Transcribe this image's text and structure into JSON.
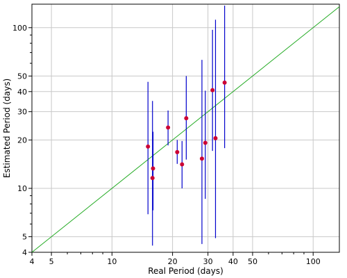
{
  "chart_data": {
    "type": "scatter",
    "xlabel": "Real Period (days)",
    "ylabel": "Estimated Period (days)",
    "x_scale": "log",
    "y_scale": "log",
    "xlim": [
      4,
      135
    ],
    "ylim": [
      4,
      140
    ],
    "grid": true,
    "x_ticks": [
      {
        "value": 4,
        "label": "4",
        "grid": false
      },
      {
        "value": 5,
        "label": "5",
        "grid": true
      },
      {
        "value": 10,
        "label": "10",
        "grid": true
      },
      {
        "value": 20,
        "label": "20",
        "grid": true
      },
      {
        "value": 30,
        "label": "30",
        "grid": true
      },
      {
        "value": 40,
        "label": "40",
        "grid": true
      },
      {
        "value": 50,
        "label": "50",
        "grid": true
      },
      {
        "value": 100,
        "label": "100",
        "grid": true
      }
    ],
    "y_ticks": [
      {
        "value": 4,
        "label": "4",
        "grid": false
      },
      {
        "value": 5,
        "label": "5",
        "grid": true
      },
      {
        "value": 10,
        "label": "10",
        "grid": true
      },
      {
        "value": 20,
        "label": "20",
        "grid": true
      },
      {
        "value": 30,
        "label": "30",
        "grid": true
      },
      {
        "value": 40,
        "label": "40",
        "grid": true
      },
      {
        "value": 50,
        "label": "50",
        "grid": true
      },
      {
        "value": 100,
        "label": "100",
        "grid": true
      }
    ],
    "x_minor_ticks": [
      6,
      7,
      8,
      9,
      60,
      70,
      80,
      90
    ],
    "y_minor_ticks": [
      6,
      7,
      8,
      9,
      60,
      70,
      80,
      90
    ],
    "reference_line": {
      "from": 4,
      "to": 135,
      "color": "#22aa22"
    },
    "series": [
      {
        "color": "#cc0033",
        "errorbar_color": "#0000cc",
        "points": [
          {
            "x": 15.1,
            "y": 18.2,
            "ylow": 6.9,
            "yhigh": 46
          },
          {
            "x": 15.9,
            "y": 11.6,
            "ylow": 4.4,
            "yhigh": 35
          },
          {
            "x": 16.0,
            "y": 13.3,
            "ylow": 7.3,
            "yhigh": 22.5
          },
          {
            "x": 19.0,
            "y": 23.9,
            "ylow": 18.5,
            "yhigh": 30.5
          },
          {
            "x": 21.1,
            "y": 16.8,
            "ylow": 14.2,
            "yhigh": 20
          },
          {
            "x": 22.3,
            "y": 14.1,
            "ylow": 10,
            "yhigh": 19.7
          },
          {
            "x": 23.4,
            "y": 27.3,
            "ylow": 15.1,
            "yhigh": 50
          },
          {
            "x": 28.0,
            "y": 15.3,
            "ylow": 4.5,
            "yhigh": 63
          },
          {
            "x": 29.1,
            "y": 19.2,
            "ylow": 8.6,
            "yhigh": 40.5
          },
          {
            "x": 31.6,
            "y": 40.8,
            "ylow": 17.1,
            "yhigh": 97
          },
          {
            "x": 32.7,
            "y": 20.5,
            "ylow": 4.9,
            "yhigh": 112
          },
          {
            "x": 36.3,
            "y": 45.5,
            "ylow": 17.8,
            "yhigh": 137
          }
        ]
      }
    ]
  }
}
